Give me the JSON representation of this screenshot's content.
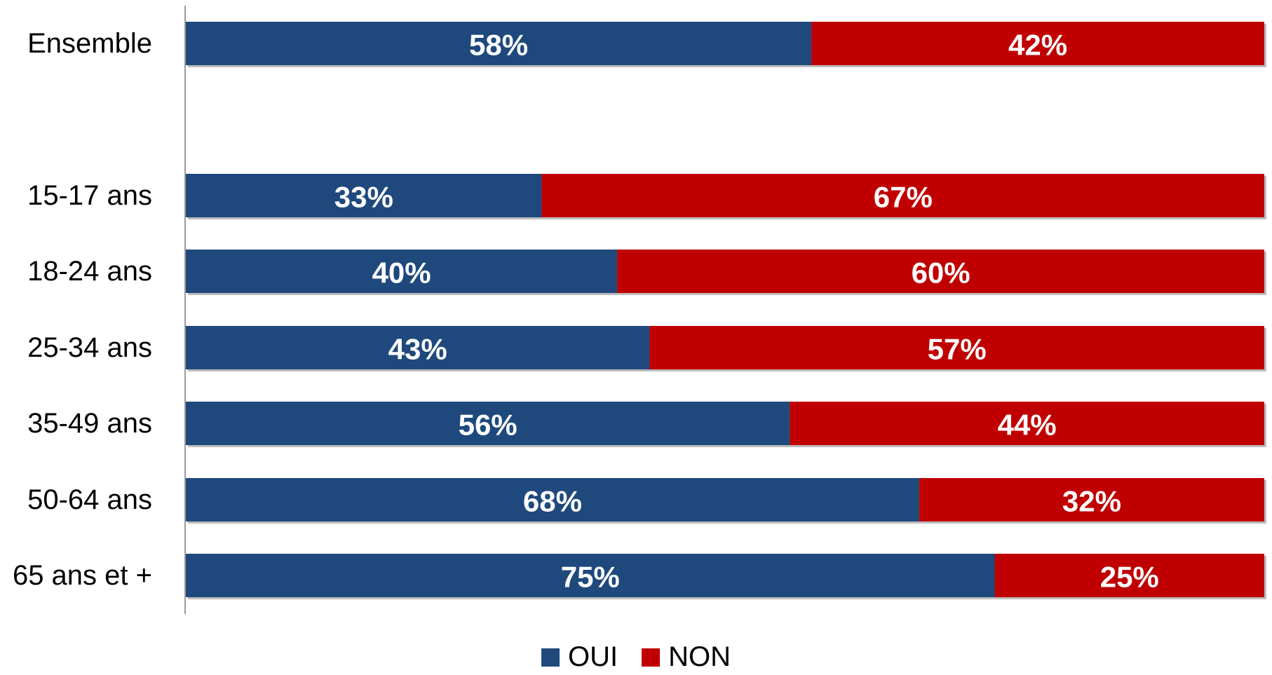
{
  "chart_data": {
    "type": "bar",
    "orientation": "horizontal",
    "stacked": true,
    "normalized": true,
    "title": "",
    "xlabel": "",
    "ylabel": "",
    "xlim": [
      0,
      100
    ],
    "grid": false,
    "categories": [
      "Ensemble",
      "15-17 ans",
      "18-24 ans",
      "25-34 ans",
      "35-49 ans",
      "50-64 ans",
      "65 ans et +"
    ],
    "series": [
      {
        "name": "OUI",
        "color": "#1F497D",
        "values": [
          58,
          33,
          40,
          43,
          56,
          68,
          75
        ],
        "labels": [
          "58%",
          "33%",
          "40%",
          "43%",
          "56%",
          "68%",
          "75%"
        ]
      },
      {
        "name": "NON",
        "color": "#C00000",
        "values": [
          42,
          67,
          60,
          57,
          44,
          32,
          25
        ],
        "labels": [
          "42%",
          "67%",
          "60%",
          "57%",
          "44%",
          "32%",
          "25%"
        ]
      }
    ],
    "legend": {
      "position": "bottom",
      "entries": [
        "OUI",
        "NON"
      ]
    }
  }
}
